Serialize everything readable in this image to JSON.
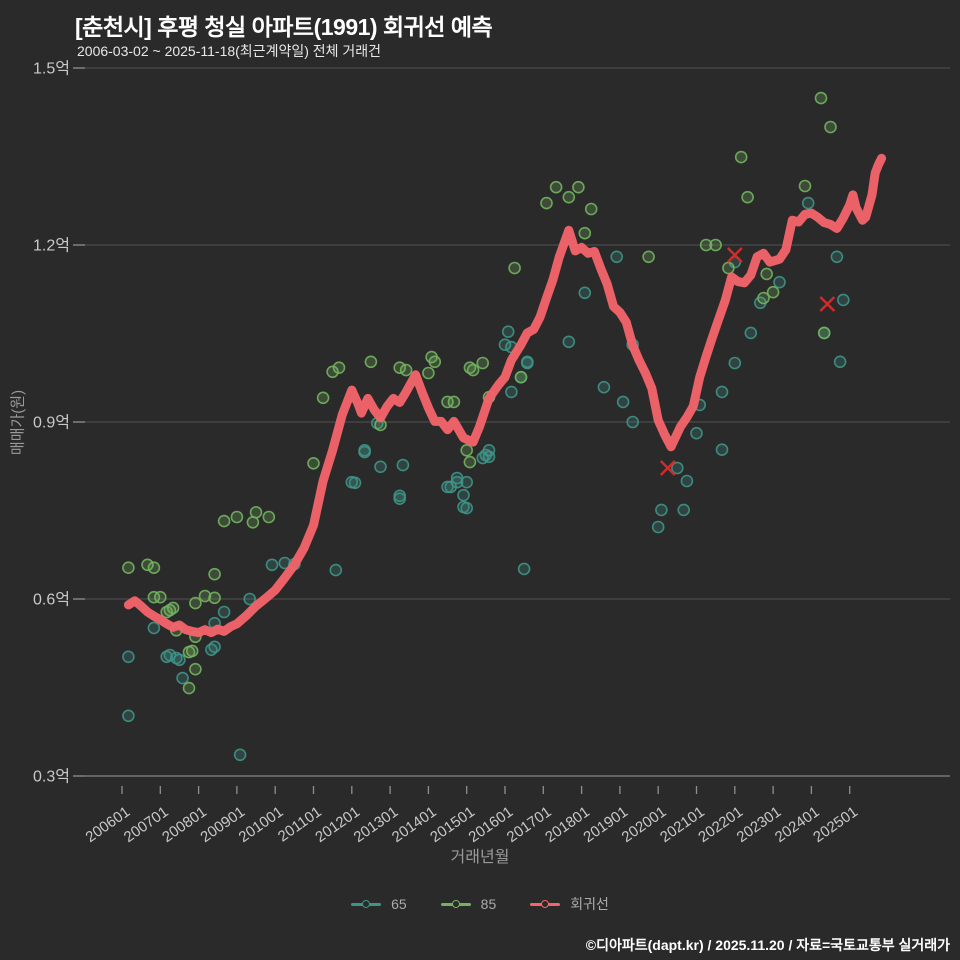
{
  "header": {
    "title": "[춘천시] 후평 청실 아파트(1991) 회귀선 예측",
    "subtitle": "2006-03-02 ~ 2025-11-18(최근계약일) 전체 거래건"
  },
  "axes": {
    "y_title": "매매가(원)",
    "x_title": "거래년월",
    "y_ticks": [
      {
        "label": "1.5억",
        "value": 1.5
      },
      {
        "label": "1.2억",
        "value": 1.2
      },
      {
        "label": "0.9억",
        "value": 0.9
      },
      {
        "label": "0.6억",
        "value": 0.6
      },
      {
        "label": "0.3억",
        "value": 0.3
      }
    ],
    "x_ticks": [
      "200601",
      "200701",
      "200801",
      "200901",
      "201001",
      "201101",
      "201201",
      "201301",
      "201401",
      "201501",
      "201601",
      "201701",
      "201801",
      "201901",
      "202001",
      "202101",
      "202201",
      "202301",
      "202401",
      "202501"
    ]
  },
  "legend": {
    "items": [
      {
        "label": "65",
        "color": "#3f9488"
      },
      {
        "label": "85",
        "color": "#73b261"
      },
      {
        "label": "회귀선",
        "color": "#f4646a"
      }
    ]
  },
  "footer": {
    "credit": "©디아파트(dapt.kr) / 2025.11.20 / 자료=국토교통부 실거래가"
  },
  "colors": {
    "background": "#2a2a2a",
    "gridline": "#515151",
    "axis_line": "#787878",
    "tick": "#8f8f8f",
    "tick_label": "#c9c9c9",
    "axis_title": "#9a9a9a",
    "series_65": "#3f9488",
    "series_85": "#73b261",
    "regression": "#f4646a",
    "x_marker": "#d42a2a"
  },
  "chart_data": {
    "type": "scatter",
    "title": "[춘천시] 후평 청실 아파트(1991) 회귀선 예측",
    "xlabel": "거래년월",
    "ylabel": "매매가(원)",
    "y_unit": "억원",
    "ylim": [
      0.3,
      1.5
    ],
    "x_range": [
      "2006-01",
      "2026-01"
    ],
    "grid": true,
    "legend_position": "bottom-center",
    "series": [
      {
        "name": "65",
        "type": "scatter",
        "color": "#3f9488",
        "points": [
          [
            "2006-03",
            0.502
          ],
          [
            "2006-03",
            0.402
          ],
          [
            "2006-11",
            0.551
          ],
          [
            "2007-03",
            0.502
          ],
          [
            "2007-04",
            0.505
          ],
          [
            "2007-06",
            0.5
          ],
          [
            "2007-07",
            0.497
          ],
          [
            "2007-08",
            0.466
          ],
          [
            "2008-05",
            0.514
          ],
          [
            "2008-06",
            0.519
          ],
          [
            "2008-06",
            0.559
          ],
          [
            "2008-09",
            0.578
          ],
          [
            "2009-02",
            0.336
          ],
          [
            "2009-05",
            0.6
          ],
          [
            "2009-12",
            0.658
          ],
          [
            "2010-04",
            0.661
          ],
          [
            "2010-07",
            0.659
          ],
          [
            "2011-08",
            0.649
          ],
          [
            "2012-01",
            0.798
          ],
          [
            "2012-02",
            0.797
          ],
          [
            "2012-05",
            0.852
          ],
          [
            "2012-05",
            0.849
          ],
          [
            "2012-09",
            0.898
          ],
          [
            "2012-10",
            0.824
          ],
          [
            "2013-04",
            0.775
          ],
          [
            "2013-04",
            0.77
          ],
          [
            "2013-05",
            0.827
          ],
          [
            "2014-07",
            0.79
          ],
          [
            "2014-08",
            0.79
          ],
          [
            "2014-10",
            0.805
          ],
          [
            "2014-10",
            0.798
          ],
          [
            "2014-12",
            0.756
          ],
          [
            "2014-12",
            0.776
          ],
          [
            "2015-01",
            0.798
          ],
          [
            "2015-01",
            0.754
          ],
          [
            "2015-06",
            0.839
          ],
          [
            "2015-07",
            0.844
          ],
          [
            "2015-08",
            0.852
          ],
          [
            "2015-08",
            0.841
          ],
          [
            "2016-01",
            1.031
          ],
          [
            "2016-02",
            1.053
          ],
          [
            "2016-03",
            1.027
          ],
          [
            "2016-03",
            0.951
          ],
          [
            "2016-06",
            0.976
          ],
          [
            "2016-07",
            0.651
          ],
          [
            "2016-08",
            1.0
          ],
          [
            "2016-08",
            1.002
          ],
          [
            "2017-09",
            1.036
          ],
          [
            "2018-02",
            1.119
          ],
          [
            "2018-08",
            0.959
          ],
          [
            "2018-12",
            1.18
          ],
          [
            "2019-02",
            0.934
          ],
          [
            "2019-05",
            0.9
          ],
          [
            "2019-05",
            1.031
          ],
          [
            "2020-01",
            0.722
          ],
          [
            "2020-02",
            0.751
          ],
          [
            "2020-07",
            0.822
          ],
          [
            "2020-09",
            0.751
          ],
          [
            "2020-10",
            0.8
          ],
          [
            "2021-01",
            0.881
          ],
          [
            "2021-02",
            0.929
          ],
          [
            "2021-09",
            0.853
          ],
          [
            "2021-09",
            0.951
          ],
          [
            "2022-01",
            1.0
          ],
          [
            "2022-01",
            1.171
          ],
          [
            "2022-06",
            1.051
          ],
          [
            "2022-09",
            1.102
          ],
          [
            "2023-03",
            1.137
          ],
          [
            "2023-12",
            1.271
          ],
          [
            "2024-05",
            1.051
          ],
          [
            "2024-09",
            1.18
          ],
          [
            "2024-10",
            1.002
          ],
          [
            "2024-11",
            1.107
          ]
        ]
      },
      {
        "name": "85",
        "type": "scatter",
        "color": "#73b261",
        "points": [
          [
            "2006-03",
            0.653
          ],
          [
            "2006-09",
            0.658
          ],
          [
            "2006-11",
            0.653
          ],
          [
            "2006-11",
            0.603
          ],
          [
            "2007-01",
            0.603
          ],
          [
            "2007-03",
            0.578
          ],
          [
            "2007-04",
            0.581
          ],
          [
            "2007-05",
            0.585
          ],
          [
            "2007-06",
            0.547
          ],
          [
            "2007-10",
            0.51
          ],
          [
            "2007-10",
            0.449
          ],
          [
            "2007-11",
            0.512
          ],
          [
            "2007-12",
            0.536
          ],
          [
            "2007-12",
            0.481
          ],
          [
            "2007-12",
            0.593
          ],
          [
            "2008-03",
            0.605
          ],
          [
            "2008-06",
            0.642
          ],
          [
            "2008-06",
            0.602
          ],
          [
            "2008-09",
            0.732
          ],
          [
            "2009-01",
            0.739
          ],
          [
            "2009-06",
            0.73
          ],
          [
            "2009-07",
            0.747
          ],
          [
            "2009-11",
            0.739
          ],
          [
            "2011-01",
            0.83
          ],
          [
            "2011-04",
            0.941
          ],
          [
            "2011-07",
            0.985
          ],
          [
            "2011-09",
            0.992
          ],
          [
            "2012-07",
            1.002
          ],
          [
            "2012-10",
            0.895
          ],
          [
            "2013-04",
            0.992
          ],
          [
            "2013-06",
            0.988
          ],
          [
            "2014-01",
            0.983
          ],
          [
            "2014-02",
            1.01
          ],
          [
            "2014-03",
            1.002
          ],
          [
            "2014-07",
            0.934
          ],
          [
            "2014-09",
            0.934
          ],
          [
            "2015-01",
            0.852
          ],
          [
            "2015-02",
            0.832
          ],
          [
            "2015-02",
            0.992
          ],
          [
            "2015-03",
            0.988
          ],
          [
            "2015-06",
            1.0
          ],
          [
            "2015-08",
            0.942
          ],
          [
            "2016-04",
            1.161
          ],
          [
            "2016-06",
            0.976
          ],
          [
            "2017-02",
            1.271
          ],
          [
            "2017-05",
            1.298
          ],
          [
            "2017-09",
            1.281
          ],
          [
            "2017-12",
            1.298
          ],
          [
            "2018-02",
            1.22
          ],
          [
            "2018-04",
            1.261
          ],
          [
            "2019-10",
            1.18
          ],
          [
            "2021-04",
            1.2
          ],
          [
            "2021-07",
            1.2
          ],
          [
            "2021-11",
            1.161
          ],
          [
            "2022-03",
            1.349
          ],
          [
            "2022-05",
            1.281
          ],
          [
            "2022-10",
            1.11
          ],
          [
            "2022-11",
            1.151
          ],
          [
            "2023-01",
            1.12
          ],
          [
            "2023-11",
            1.3
          ],
          [
            "2024-04",
            1.449
          ],
          [
            "2024-05",
            1.051
          ],
          [
            "2024-07",
            1.4
          ]
        ]
      },
      {
        "name": "회귀선",
        "type": "line",
        "color": "#f4646a",
        "points": [
          [
            "2006-03",
            0.59
          ],
          [
            "2006-05",
            0.597
          ],
          [
            "2006-07",
            0.588
          ],
          [
            "2006-09",
            0.578
          ],
          [
            "2006-11",
            0.571
          ],
          [
            "2007-01",
            0.565
          ],
          [
            "2007-03",
            0.558
          ],
          [
            "2007-05",
            0.552
          ],
          [
            "2007-07",
            0.556
          ],
          [
            "2007-09",
            0.548
          ],
          [
            "2007-11",
            0.545
          ],
          [
            "2008-01",
            0.543
          ],
          [
            "2008-03",
            0.548
          ],
          [
            "2008-05",
            0.543
          ],
          [
            "2008-07",
            0.549
          ],
          [
            "2008-09",
            0.545
          ],
          [
            "2008-11",
            0.553
          ],
          [
            "2009-01",
            0.558
          ],
          [
            "2009-04",
            0.572
          ],
          [
            "2009-07",
            0.588
          ],
          [
            "2009-10",
            0.601
          ],
          [
            "2010-01",
            0.615
          ],
          [
            "2010-04",
            0.636
          ],
          [
            "2010-07",
            0.658
          ],
          [
            "2010-10",
            0.686
          ],
          [
            "2011-01",
            0.725
          ],
          [
            "2011-04",
            0.8
          ],
          [
            "2011-07",
            0.852
          ],
          [
            "2011-10",
            0.912
          ],
          [
            "2011-12",
            0.94
          ],
          [
            "2012-01",
            0.954
          ],
          [
            "2012-03",
            0.93
          ],
          [
            "2012-04",
            0.915
          ],
          [
            "2012-06",
            0.94
          ],
          [
            "2012-08",
            0.921
          ],
          [
            "2012-10",
            0.907
          ],
          [
            "2012-12",
            0.926
          ],
          [
            "2013-02",
            0.94
          ],
          [
            "2013-04",
            0.933
          ],
          [
            "2013-06",
            0.951
          ],
          [
            "2013-09",
            0.98
          ],
          [
            "2013-11",
            0.951
          ],
          [
            "2014-01",
            0.924
          ],
          [
            "2014-03",
            0.901
          ],
          [
            "2014-05",
            0.901
          ],
          [
            "2014-07",
            0.887
          ],
          [
            "2014-09",
            0.901
          ],
          [
            "2014-12",
            0.873
          ],
          [
            "2015-03",
            0.866
          ],
          [
            "2015-05",
            0.892
          ],
          [
            "2015-08",
            0.94
          ],
          [
            "2015-11",
            0.963
          ],
          [
            "2016-01",
            0.976
          ],
          [
            "2016-03",
            1.005
          ],
          [
            "2016-06",
            1.031
          ],
          [
            "2016-08",
            1.051
          ],
          [
            "2016-10",
            1.057
          ],
          [
            "2016-12",
            1.078
          ],
          [
            "2017-02",
            1.11
          ],
          [
            "2017-04",
            1.141
          ],
          [
            "2017-06",
            1.18
          ],
          [
            "2017-09",
            1.225
          ],
          [
            "2017-11",
            1.19
          ],
          [
            "2018-01",
            1.196
          ],
          [
            "2018-03",
            1.186
          ],
          [
            "2018-05",
            1.189
          ],
          [
            "2018-07",
            1.16
          ],
          [
            "2018-09",
            1.134
          ],
          [
            "2018-11",
            1.096
          ],
          [
            "2019-01",
            1.086
          ],
          [
            "2019-03",
            1.069
          ],
          [
            "2019-05",
            1.03
          ],
          [
            "2019-07",
            1.005
          ],
          [
            "2019-09",
            0.983
          ],
          [
            "2019-11",
            0.957
          ],
          [
            "2020-01",
            0.903
          ],
          [
            "2020-03",
            0.879
          ],
          [
            "2020-05",
            0.858
          ],
          [
            "2020-08",
            0.892
          ],
          [
            "2020-10",
            0.908
          ],
          [
            "2020-12",
            0.927
          ],
          [
            "2021-02",
            0.976
          ],
          [
            "2021-04",
            1.011
          ],
          [
            "2021-06",
            1.044
          ],
          [
            "2021-08",
            1.075
          ],
          [
            "2021-10",
            1.106
          ],
          [
            "2021-12",
            1.146
          ],
          [
            "2022-02",
            1.138
          ],
          [
            "2022-04",
            1.136
          ],
          [
            "2022-06",
            1.149
          ],
          [
            "2022-08",
            1.18
          ],
          [
            "2022-10",
            1.186
          ],
          [
            "2022-12",
            1.171
          ],
          [
            "2023-03",
            1.176
          ],
          [
            "2023-05",
            1.192
          ],
          [
            "2023-07",
            1.242
          ],
          [
            "2023-09",
            1.239
          ],
          [
            "2023-11",
            1.252
          ],
          [
            "2024-01",
            1.254
          ],
          [
            "2024-03",
            1.247
          ],
          [
            "2024-05",
            1.238
          ],
          [
            "2024-07",
            1.235
          ],
          [
            "2024-09",
            1.228
          ],
          [
            "2024-11",
            1.246
          ],
          [
            "2025-01",
            1.268
          ],
          [
            "2025-02",
            1.285
          ],
          [
            "2025-03",
            1.263
          ],
          [
            "2025-05",
            1.242
          ],
          [
            "2025-06",
            1.247
          ],
          [
            "2025-08",
            1.285
          ],
          [
            "2025-09",
            1.322
          ],
          [
            "2025-10",
            1.336
          ],
          [
            "2025-11",
            1.347
          ]
        ]
      }
    ],
    "x_markers": {
      "symbol": "x",
      "color": "#d42a2a",
      "points": [
        [
          "2020-04",
          0.822
        ],
        [
          "2022-01",
          1.183
        ],
        [
          "2024-06",
          1.1
        ]
      ]
    }
  }
}
